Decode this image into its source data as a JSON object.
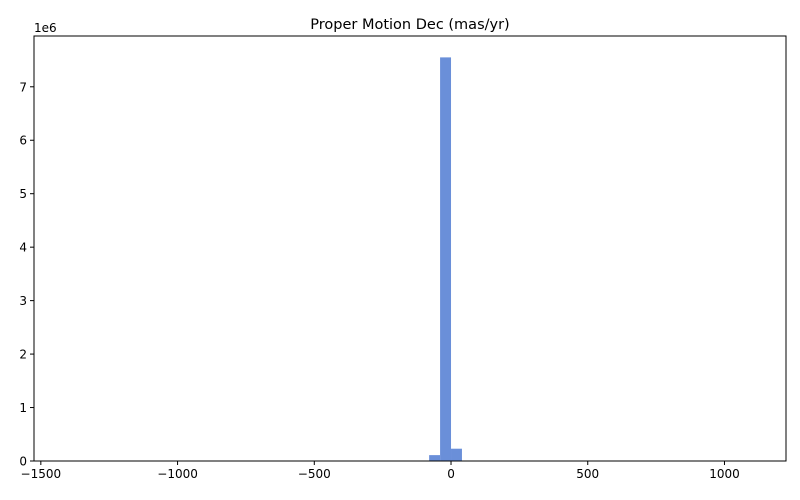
{
  "chart_data": {
    "type": "bar",
    "subtype": "histogram",
    "title": "Proper Motion Dec (mas/yr)",
    "xlabel": "",
    "ylabel": "",
    "y_scale_label": "1e6",
    "y_multiplier": 1000000,
    "xlim": [
      -1525,
      1225
    ],
    "ylim": [
      0,
      7950000
    ],
    "x_ticks": [
      -1500,
      -1000,
      -500,
      0,
      500,
      1000
    ],
    "x_tick_labels": [
      "−1500",
      "−1000",
      "−500",
      "0",
      "500",
      "1000"
    ],
    "y_ticks": [
      0,
      1000000,
      2000000,
      3000000,
      4000000,
      5000000,
      6000000,
      7000000
    ],
    "y_tick_labels": [
      "0",
      "1",
      "2",
      "3",
      "4",
      "5",
      "6",
      "7"
    ],
    "bar_color": "#6a8fd9",
    "bins": [
      {
        "x0": -80,
        "x1": -40,
        "count": 110000
      },
      {
        "x0": -40,
        "x1": 0,
        "count": 7550000
      },
      {
        "x0": 0,
        "x1": 40,
        "count": 230000
      }
    ],
    "grid": false,
    "legend": "none"
  }
}
